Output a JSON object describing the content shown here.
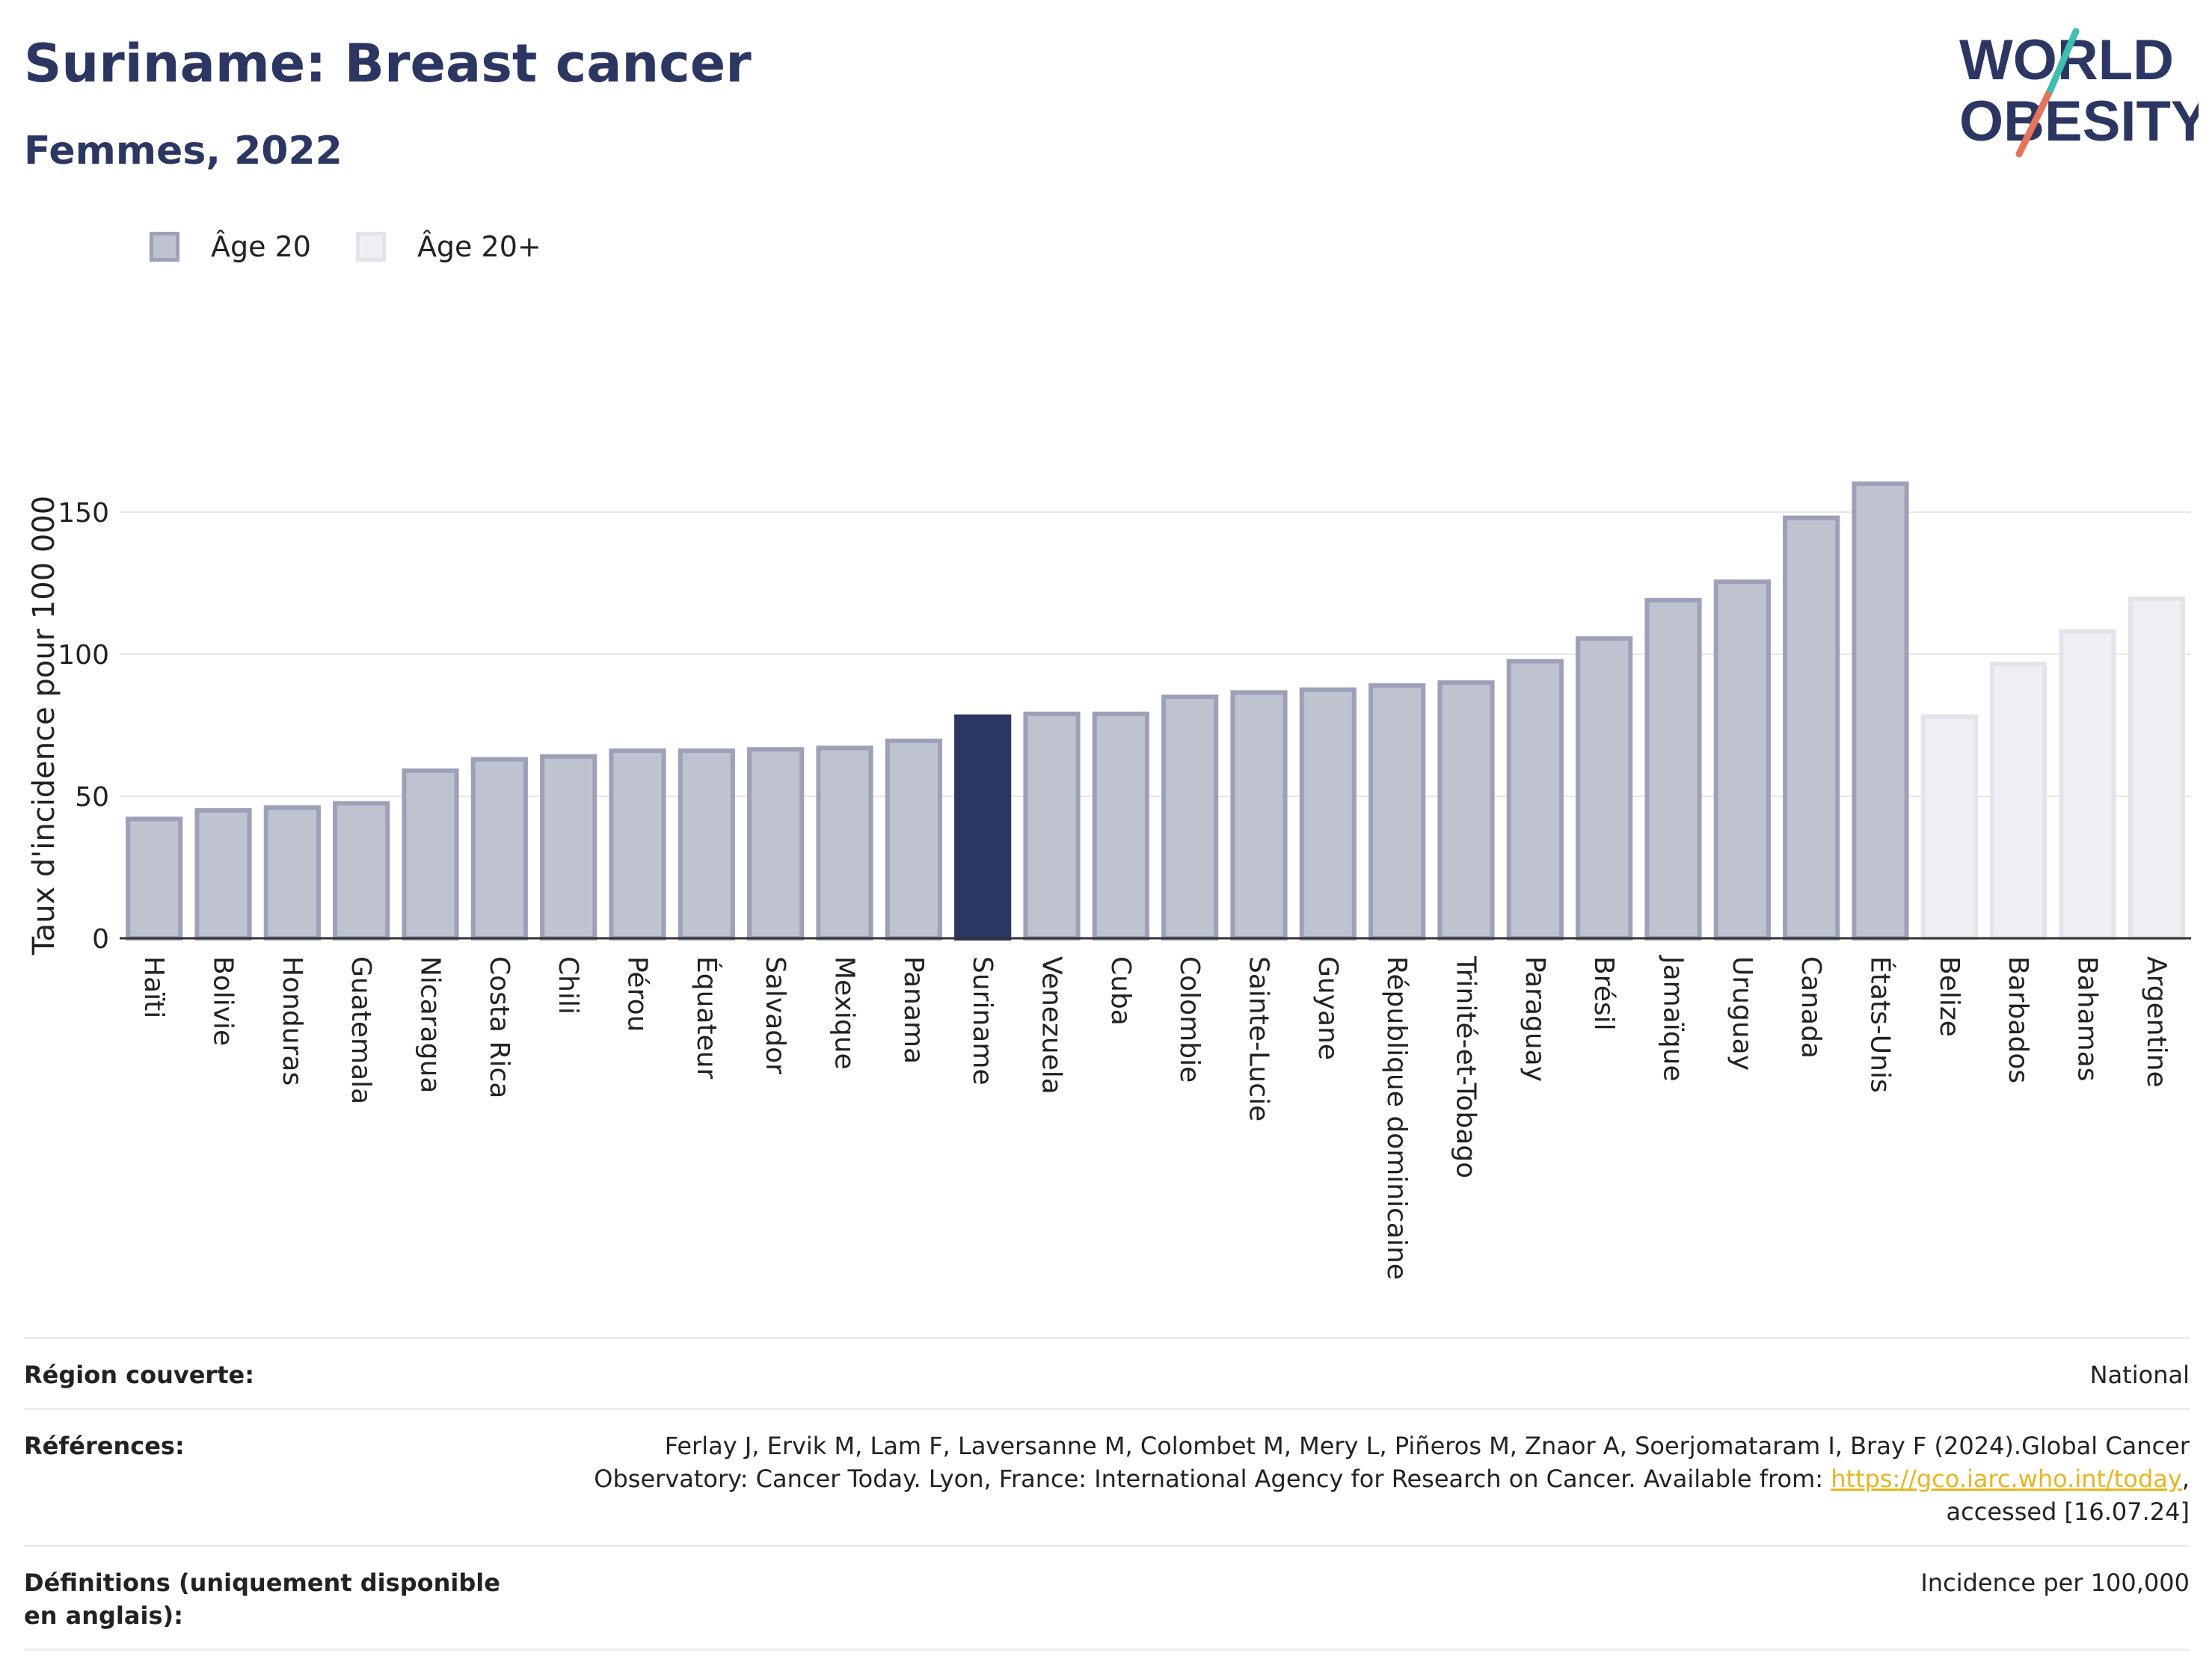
{
  "header": {
    "title": "Suriname: Breast cancer",
    "subtitle": "Femmes, 2022"
  },
  "logo": {
    "line1": "WORLD",
    "line2": "OBESITY"
  },
  "legend": [
    {
      "label": "Âge 20",
      "color": "#bfc2cf",
      "border": "#9ca1b8"
    },
    {
      "label": "Âge 20+",
      "color": "#eeeff3",
      "border": "#e2e4ea"
    }
  ],
  "colors": {
    "highlight": "#2c3663",
    "age20": "#bfc2cf",
    "age20_border": "#9ca1b8",
    "age20plus": "#eeeff3",
    "age20plus_border": "#e2e4ea"
  },
  "chart_data": {
    "type": "bar",
    "ylabel": "Taux d'incidence pour 100 000",
    "ylim": [
      0,
      170
    ],
    "yticks": [
      0,
      50,
      100,
      150
    ],
    "grid": true,
    "legend_position": "top-left",
    "highlight": "Suriname",
    "categories": [
      "Haïti",
      "Bolivie",
      "Honduras",
      "Guatemala",
      "Nicaragua",
      "Costa Rica",
      "Chili",
      "Pérou",
      "Équateur",
      "Salvador",
      "Mexique",
      "Panama",
      "Suriname",
      "Venezuela",
      "Cuba",
      "Colombie",
      "Sainte-Lucie",
      "Guyane",
      "République dominicaine",
      "Trinité-et-Tobago",
      "Paraguay",
      "Brésil",
      "Jamaïque",
      "Uruguay",
      "Canada",
      "États-Unis",
      "Belize",
      "Barbados",
      "Bahamas",
      "Argentine"
    ],
    "values": [
      42,
      45,
      46,
      47.5,
      59,
      63,
      64,
      66,
      66,
      66.5,
      67,
      69.5,
      78,
      79,
      79,
      85,
      86.5,
      87.5,
      89,
      90,
      97.5,
      105.5,
      119,
      125.5,
      148,
      160,
      78,
      96.5,
      108,
      119.5
    ],
    "age_group": [
      "Âge 20",
      "Âge 20",
      "Âge 20",
      "Âge 20",
      "Âge 20",
      "Âge 20",
      "Âge 20",
      "Âge 20",
      "Âge 20",
      "Âge 20",
      "Âge 20",
      "Âge 20",
      "Âge 20",
      "Âge 20",
      "Âge 20",
      "Âge 20",
      "Âge 20",
      "Âge 20",
      "Âge 20",
      "Âge 20",
      "Âge 20",
      "Âge 20",
      "Âge 20",
      "Âge 20",
      "Âge 20",
      "Âge 20",
      "Âge 20+",
      "Âge 20+",
      "Âge 20+",
      "Âge 20+"
    ]
  },
  "meta": {
    "region_label": "Région couverte:",
    "region_value": "National",
    "references_label": "Références:",
    "references_text_1": "Ferlay J, Ervik M, Lam F, Laversanne M, Colombet M, Mery L, Piñeros M, Znaor A, Soerjomataram I, Bray F (2024).Global Cancer Observatory: Cancer Today. Lyon, France: International Agency for Research on Cancer. Available from: ",
    "references_link": "https://gco.iarc.who.int/today",
    "references_text_2": ", accessed [16.07.24]",
    "definitions_label": "Définitions (uniquement disponible en anglais):",
    "definitions_value": "Incidence per 100,000"
  }
}
